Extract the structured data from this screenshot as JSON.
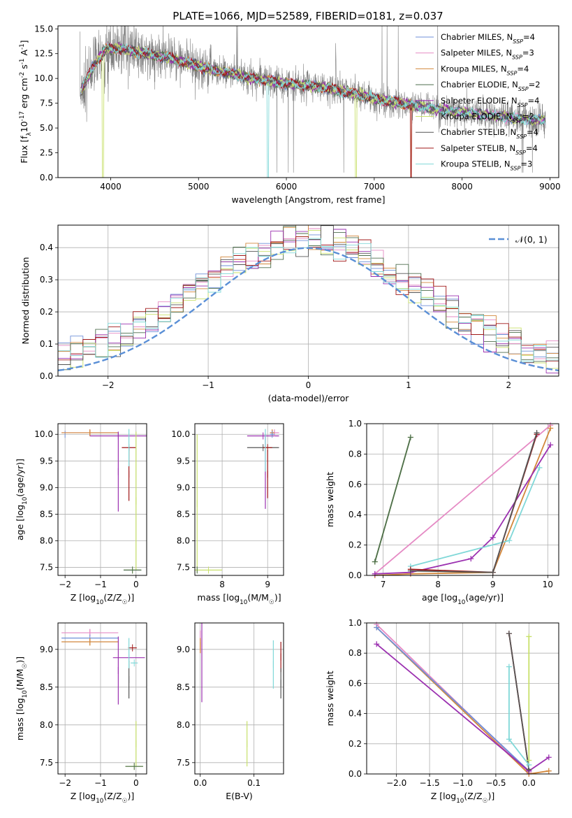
{
  "figure": {
    "title": "PLATE=1066, MJD=52589, FIBERID=0181, z=0.037"
  },
  "models": [
    {
      "name": "Chabrier MILES, N$_{SSP}$=4",
      "label_main": "Chabrier MILES, N",
      "label_sub": "SSP",
      "label_end": "=4",
      "color": "#6f8fd8"
    },
    {
      "name": "Salpeter MILES, N$_{SSP}$=3",
      "label_main": "Salpeter MILES, N",
      "label_sub": "SSP",
      "label_end": "=3",
      "color": "#e58ac4"
    },
    {
      "name": "Kroupa MILES, N$_{SSP}$=4",
      "label_main": "Kroupa MILES, N",
      "label_sub": "SSP",
      "label_end": "=4",
      "color": "#d2883c"
    },
    {
      "name": "Chabrier ELODIE, N$_{SSP}$=2",
      "label_main": "Chabrier ELODIE, N",
      "label_sub": "SSP",
      "label_end": "=2",
      "color": "#4d6e4d"
    },
    {
      "name": "Salpeter ELODIE, N$_{SSP}$=4",
      "label_main": "Salpeter ELODIE, N",
      "label_sub": "SSP",
      "label_end": "=4",
      "color": "#9b30b0"
    },
    {
      "name": "Kroupa ELODIE, N$_{SSP}$=2",
      "label_main": "Kroupa ELODIE, N",
      "label_sub": "SSP",
      "label_end": "=2",
      "color": "#c8e06a"
    },
    {
      "name": "Chabrier STELIB, N$_{SSP}$=4",
      "label_main": "Chabrier STELIB, N",
      "label_sub": "SSP",
      "label_end": "=4",
      "color": "#555555"
    },
    {
      "name": "Salpeter STELIB, N$_{SSP}$=4",
      "label_main": "Salpeter STELIB, N",
      "label_sub": "SSP",
      "label_end": "=4",
      "color": "#a01818"
    },
    {
      "name": "Kroupa STELIB, N$_{SSP}$=3",
      "label_main": "Kroupa STELIB, N",
      "label_sub": "SSP",
      "label_end": "=3",
      "color": "#80d8d8"
    }
  ],
  "chart_data": [
    {
      "panel": "spectrum",
      "type": "line",
      "xlabel": "wavelength [Angstrom, rest frame]",
      "ylabel": "Flux [f$_\\lambda$10$^{-17}$ erg cm$^{-2}$ s$^{-1}$ A$^{-1}$]",
      "xlim": [
        3400,
        9100
      ],
      "ylim": [
        0,
        15.3
      ],
      "xticks": [
        4000,
        5000,
        6000,
        7000,
        8000,
        9000
      ],
      "yticks": [
        0.0,
        2.5,
        5.0,
        7.5,
        10.0,
        12.5,
        15.0
      ],
      "data_color": "#808080",
      "model_continuum": {
        "x": [
          3650,
          3800,
          3950,
          4100,
          4300,
          4500,
          4700,
          4900,
          5100,
          5300,
          5500,
          5700,
          5900,
          6100,
          6300,
          6500,
          6700,
          6900,
          7100,
          7300,
          7500,
          7700,
          7900,
          8100,
          8300,
          8500,
          8700,
          8900
        ],
        "y": [
          8.5,
          11.2,
          13.0,
          13.0,
          12.7,
          12.3,
          12.0,
          11.5,
          11.0,
          10.6,
          10.2,
          9.9,
          9.6,
          9.4,
          9.2,
          9.0,
          8.6,
          8.2,
          7.8,
          7.5,
          7.2,
          6.9,
          6.7,
          6.5,
          6.3,
          6.1,
          5.9,
          5.8
        ]
      },
      "legend_loc": "upper right",
      "grid": false
    },
    {
      "panel": "residuals",
      "type": "line",
      "xlabel": "(data-model)/error",
      "ylabel": "Normed distribution",
      "xlim": [
        -2.5,
        2.5
      ],
      "ylim": [
        0,
        0.47
      ],
      "xticks": [
        -2,
        -1,
        0,
        1,
        2
      ],
      "yticks": [
        0.0,
        0.1,
        0.2,
        0.3,
        0.4
      ],
      "gaussian_label": "$\\mathcal{N}(0,1)$",
      "gaussian_label_text": "𝒩(0, 1)",
      "gaussian_color": "#5a8fd6",
      "grid": true,
      "legend_loc": "upper right"
    },
    {
      "panel": "age_vs_Z",
      "type": "scatter",
      "xlabel": "Z [log$_{10}$(Z/Z$_\\odot$)]",
      "ylabel": "age  [log$_{10}$(age/yr)]",
      "xlim": [
        -2.2,
        0.3
      ],
      "ylim": [
        7.35,
        10.2
      ],
      "xticks": [
        -2,
        -1,
        0
      ],
      "yticks": [
        7.5,
        8.0,
        8.5,
        9.0,
        9.5,
        10.0
      ],
      "grid": true,
      "points": [
        {
          "m": 0,
          "x": -2.0,
          "y": 10.0,
          "xerr": 0.0,
          "yerr": 0.0
        },
        {
          "m": 1,
          "x": -1.3,
          "y": 10.03,
          "xerr": 0.8,
          "yerr": 0.05
        },
        {
          "m": 2,
          "x": -1.3,
          "y": 10.03,
          "xerr": 0.8,
          "yerr": 0.05
        },
        {
          "m": 4,
          "x": -0.5,
          "y": 9.97,
          "xerr": 0.8,
          "yerr": 0.0
        },
        {
          "m": 4,
          "x": -0.5,
          "y": 9.3,
          "xerr": 0.0,
          "yerr": 0.75
        },
        {
          "m": 7,
          "x": -0.2,
          "y": 9.75,
          "xerr": 0.2,
          "yerr": 0.0
        },
        {
          "m": 7,
          "x": -0.2,
          "y": 9.25,
          "xerr": 0.0,
          "yerr": 0.5
        },
        {
          "m": 8,
          "x": -0.2,
          "y": 9.75,
          "xerr": 0.0,
          "yerr": 0.35
        },
        {
          "m": 5,
          "x": 0.0,
          "y": 8.75,
          "xerr": 0.0,
          "yerr": 1.3
        },
        {
          "m": 5,
          "x": -0.1,
          "y": 7.45,
          "xerr": 0.25,
          "yerr": 0.0
        },
        {
          "m": 3,
          "x": -0.1,
          "y": 7.45,
          "xerr": 0.25,
          "yerr": 0.0
        }
      ]
    },
    {
      "panel": "age_vs_mass",
      "type": "scatter",
      "xlabel": "mass [log$_{10}$(M/M$_\\odot$)]",
      "ylabel": "",
      "xlim": [
        7.4,
        9.35
      ],
      "ylim": [
        7.35,
        10.2
      ],
      "xticks": [
        8,
        9
      ],
      "yticks": [
        7.5,
        8.0,
        8.5,
        9.0,
        9.5,
        10.0
      ],
      "grid": true,
      "points": [
        {
          "m": 5,
          "x": 7.45,
          "y": 8.7,
          "xerr": 0.0,
          "yerr": 1.3
        },
        {
          "m": 5,
          "x": 7.7,
          "y": 7.45,
          "xerr": 0.3,
          "yerr": 0.0
        },
        {
          "m": 3,
          "x": 7.45,
          "y": 7.45,
          "xerr": 0.0,
          "yerr": 0.0
        },
        {
          "m": 4,
          "x": 8.9,
          "y": 9.97,
          "xerr": 0.35,
          "yerr": 0.0
        },
        {
          "m": 4,
          "x": 8.95,
          "y": 9.3,
          "xerr": 0.0,
          "yerr": 0.7
        },
        {
          "m": 6,
          "x": 8.9,
          "y": 9.75,
          "xerr": 0.35,
          "yerr": 0.0
        },
        {
          "m": 7,
          "x": 9.0,
          "y": 9.75,
          "xerr": 0.1,
          "yerr": 0.0
        },
        {
          "m": 7,
          "x": 9.0,
          "y": 9.25,
          "xerr": 0.0,
          "yerr": 0.45
        },
        {
          "m": 8,
          "x": 8.95,
          "y": 9.7,
          "xerr": 0.0,
          "yerr": 0.4
        },
        {
          "m": 1,
          "x": 9.15,
          "y": 10.03,
          "xerr": 0.1,
          "yerr": 0.05
        },
        {
          "m": 2,
          "x": 9.1,
          "y": 10.03,
          "xerr": 0.05,
          "yerr": 0.05
        },
        {
          "m": 0,
          "x": 9.1,
          "y": 10.0,
          "xerr": 0.05,
          "yerr": 0.0
        }
      ]
    },
    {
      "panel": "mass_weight_vs_age",
      "type": "line",
      "xlabel": "age  [log$_{10}$(age/yr)]",
      "ylabel": "mass weight",
      "xlim": [
        6.7,
        10.2
      ],
      "ylim": [
        0,
        1.0
      ],
      "xticks": [
        7,
        8,
        9,
        10
      ],
      "yticks": [
        0.0,
        0.2,
        0.4,
        0.6,
        0.8,
        1.0
      ],
      "grid": true,
      "series": [
        {
          "m": 5,
          "x": [
            6.85,
            7.5
          ],
          "y": [
            0.09,
            0.91
          ]
        },
        {
          "m": 1,
          "x": [
            6.85,
            10.05
          ],
          "y": [
            0.01,
            0.99
          ]
        },
        {
          "m": 2,
          "x": [
            6.85,
            7.5,
            9.0,
            10.05
          ],
          "y": [
            0.0,
            0.01,
            0.02,
            0.97
          ]
        },
        {
          "m": 4,
          "x": [
            6.85,
            7.5,
            8.6,
            9.0,
            10.05
          ],
          "y": [
            0.01,
            0.02,
            0.11,
            0.25,
            0.86
          ]
        },
        {
          "m": 8,
          "x": [
            7.5,
            9.3,
            9.85
          ],
          "y": [
            0.06,
            0.23,
            0.71
          ]
        },
        {
          "m": 7,
          "x": [
            7.5,
            9.0,
            9.8
          ],
          "y": [
            0.04,
            0.02,
            0.93
          ]
        },
        {
          "m": 6,
          "x": [
            7.5,
            9.0,
            9.8
          ],
          "y": [
            0.03,
            0.02,
            0.94
          ]
        },
        {
          "m": 3,
          "x": [
            6.85,
            7.5
          ],
          "y": [
            0.09,
            0.91
          ]
        }
      ]
    },
    {
      "panel": "mass_vs_Z",
      "type": "scatter",
      "xlabel": "Z [log$_{10}$(Z/Z$_\\odot$)]",
      "ylabel": "mass [log$_{10}$(M/M$_\\odot$)]",
      "xlim": [
        -2.2,
        0.3
      ],
      "ylim": [
        7.35,
        9.35
      ],
      "xticks": [
        -2,
        -1,
        0
      ],
      "yticks": [
        7.5,
        8.0,
        8.5,
        9.0
      ],
      "grid": true,
      "points": [
        {
          "m": 1,
          "x": -1.3,
          "y": 9.22,
          "xerr": 0.8,
          "yerr": 0.05
        },
        {
          "m": 0,
          "x": -1.3,
          "y": 9.15,
          "xerr": 0.8,
          "yerr": 0.0
        },
        {
          "m": 2,
          "x": -1.3,
          "y": 9.1,
          "xerr": 0.8,
          "yerr": 0.05
        },
        {
          "m": 4,
          "x": -0.2,
          "y": 8.89,
          "xerr": 0.45,
          "yerr": 0.0
        },
        {
          "m": 4,
          "x": -0.5,
          "y": 8.72,
          "xerr": 0.0,
          "yerr": 0.45
        },
        {
          "m": 7,
          "x": -0.1,
          "y": 9.02,
          "xerr": 0.12,
          "yerr": 0.0
        },
        {
          "m": 6,
          "x": -0.2,
          "y": 8.6,
          "xerr": 0.0,
          "yerr": 0.25
        },
        {
          "m": 8,
          "x": -0.2,
          "y": 8.95,
          "xerr": 0.0,
          "yerr": 0.2
        },
        {
          "m": 8,
          "x": -0.05,
          "y": 8.82,
          "xerr": 0.1,
          "yerr": 0.0
        },
        {
          "m": 5,
          "x": 0.0,
          "y": 7.75,
          "xerr": 0.0,
          "yerr": 0.3
        },
        {
          "m": 5,
          "x": -0.05,
          "y": 7.45,
          "xerr": 0.25,
          "yerr": 0.0
        },
        {
          "m": 3,
          "x": -0.05,
          "y": 7.45,
          "xerr": 0.25,
          "yerr": 0.0
        }
      ]
    },
    {
      "panel": "mass_vs_EBV",
      "type": "scatter",
      "xlabel": "E(B-V)",
      "ylabel": "",
      "xlim": [
        -0.01,
        0.155
      ],
      "ylim": [
        7.35,
        9.35
      ],
      "xticks": [
        0.0,
        0.1
      ],
      "yticks": [
        7.5,
        8.0,
        8.5,
        9.0
      ],
      "grid": true,
      "points": [
        {
          "m": 1,
          "x": 0.0,
          "y": 9.1,
          "xerr": 0.0,
          "yerr": 0.15
        },
        {
          "m": 4,
          "x": 0.003,
          "y": 8.9,
          "xerr": 0.0,
          "yerr": 0.6
        },
        {
          "m": 2,
          "x": 0.0,
          "y": 9.05,
          "xerr": 0.0,
          "yerr": 0.1
        },
        {
          "m": 5,
          "x": 0.087,
          "y": 7.75,
          "xerr": 0.0,
          "yerr": 0.3
        },
        {
          "m": 8,
          "x": 0.136,
          "y": 8.8,
          "xerr": 0.0,
          "yerr": 0.32
        },
        {
          "m": 7,
          "x": 0.15,
          "y": 8.9,
          "xerr": 0.0,
          "yerr": 0.2
        },
        {
          "m": 6,
          "x": 0.15,
          "y": 8.55,
          "xerr": 0.0,
          "yerr": 0.2
        }
      ]
    },
    {
      "panel": "mass_weight_vs_Z",
      "type": "line",
      "xlabel": "Z [log$_{10}$(Z/Z$_\\odot$)]",
      "ylabel": "mass weight",
      "xlim": [
        -2.45,
        0.45
      ],
      "ylim": [
        0,
        1.0
      ],
      "xticks": [
        -2.0,
        -1.5,
        -1.0,
        -0.5,
        0.0
      ],
      "yticks": [
        0.0,
        0.2,
        0.4,
        0.6,
        0.8,
        1.0
      ],
      "grid": true,
      "series": [
        {
          "m": 1,
          "x": [
            -2.3,
            0.0
          ],
          "y": [
            0.99,
            0.01
          ]
        },
        {
          "m": 2,
          "x": [
            -2.3,
            0.0,
            0.3
          ],
          "y": [
            0.97,
            0.0,
            0.02
          ]
        },
        {
          "m": 0,
          "x": [
            -2.3,
            0.0
          ],
          "y": [
            0.97,
            0.02
          ]
        },
        {
          "m": 4,
          "x": [
            -2.3,
            0.0,
            0.3
          ],
          "y": [
            0.86,
            0.02,
            0.11
          ]
        },
        {
          "m": 7,
          "x": [
            -0.3,
            0.0
          ],
          "y": [
            0.93,
            0.03
          ]
        },
        {
          "m": 6,
          "x": [
            -0.3,
            0.0
          ],
          "y": [
            0.93,
            0.03
          ]
        },
        {
          "m": 8,
          "x": [
            -0.3,
            -0.3,
            0.0
          ],
          "y": [
            0.71,
            0.23,
            0.06
          ]
        },
        {
          "m": 5,
          "x": [
            0.0,
            0.0
          ],
          "y": [
            0.91,
            0.09
          ]
        }
      ]
    }
  ]
}
